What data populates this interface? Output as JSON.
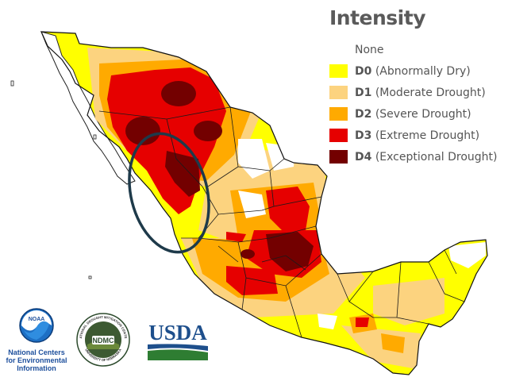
{
  "legend": {
    "title": "Intensity",
    "items": [
      {
        "code": "",
        "label": "None",
        "color": "#ffffff"
      },
      {
        "code": "D0",
        "label": "(Abnormally Dry)",
        "color": "#ffff00"
      },
      {
        "code": "D1",
        "label": "(Moderate Drought)",
        "color": "#fcd37f"
      },
      {
        "code": "D2",
        "label": "(Severe Drought)",
        "color": "#ffaa00"
      },
      {
        "code": "D3",
        "label": "(Extreme Drought)",
        "color": "#e60000"
      },
      {
        "code": "D4",
        "label": "(Exceptional Drought)",
        "color": "#730000"
      }
    ]
  },
  "logos": {
    "noaa_badge": "NOAA",
    "noaa_caption": "National Centers for Environmental Information",
    "ndmc_badge": "NDMC",
    "ndmc_ring_top": "NATIONAL DROUGHT MITIGATION CENTER",
    "ndmc_ring_bottom": "UNIVERSITY OF NEBRASKA",
    "usda": "USDA"
  },
  "annotation": {
    "shape": "ellipse",
    "color": "#1e3a4a"
  }
}
